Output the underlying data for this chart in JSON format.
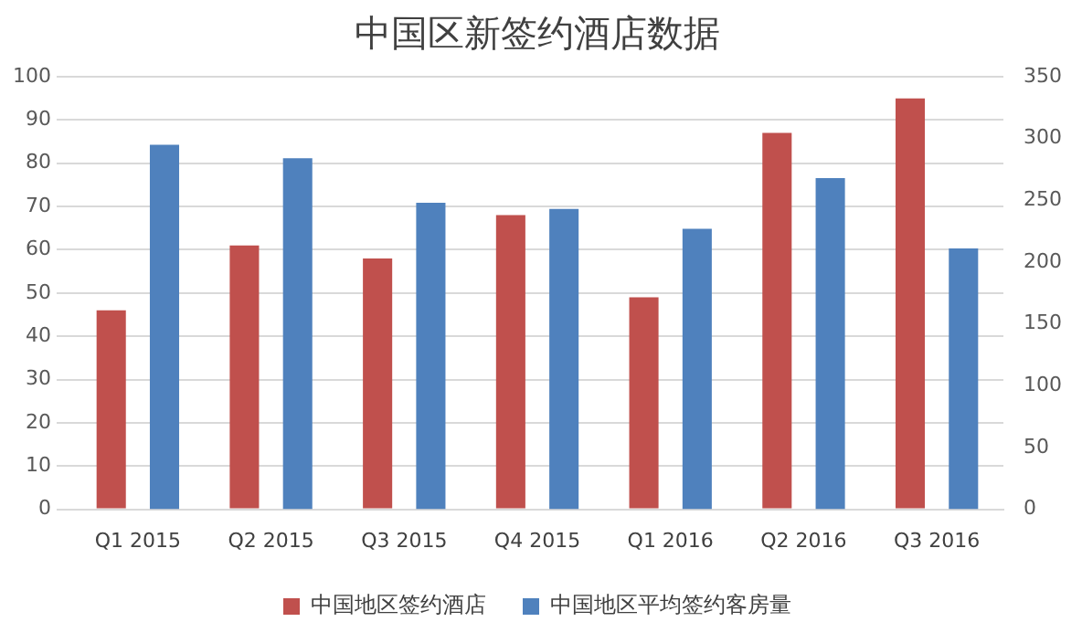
{
  "chart_data": {
    "type": "bar",
    "title": "中国区新签约酒店数据",
    "categories": [
      "Q1 2015",
      "Q2 2015",
      "Q3 2015",
      "Q4 2015",
      "Q1 2016",
      "Q2 2016",
      "Q3 2016"
    ],
    "series": [
      {
        "name": "中国地区签约酒店",
        "color": "#c0504d",
        "values": [
          46,
          61,
          58,
          68,
          49,
          87,
          95
        ]
      },
      {
        "name": "中国地区平均签约客房量",
        "color": "#4f81bd",
        "axis": "y2",
        "values": [
          295,
          284,
          248,
          243,
          227,
          268,
          211
        ]
      }
    ],
    "ylim": [
      0,
      100
    ],
    "yticks": [
      0,
      10,
      20,
      30,
      40,
      50,
      60,
      70,
      80,
      90,
      100
    ],
    "y2lim": [
      0,
      350
    ],
    "y2ticks": [
      0,
      50,
      100,
      150,
      200,
      250,
      300,
      350
    ],
    "grid": "y",
    "legend": "bottom"
  }
}
